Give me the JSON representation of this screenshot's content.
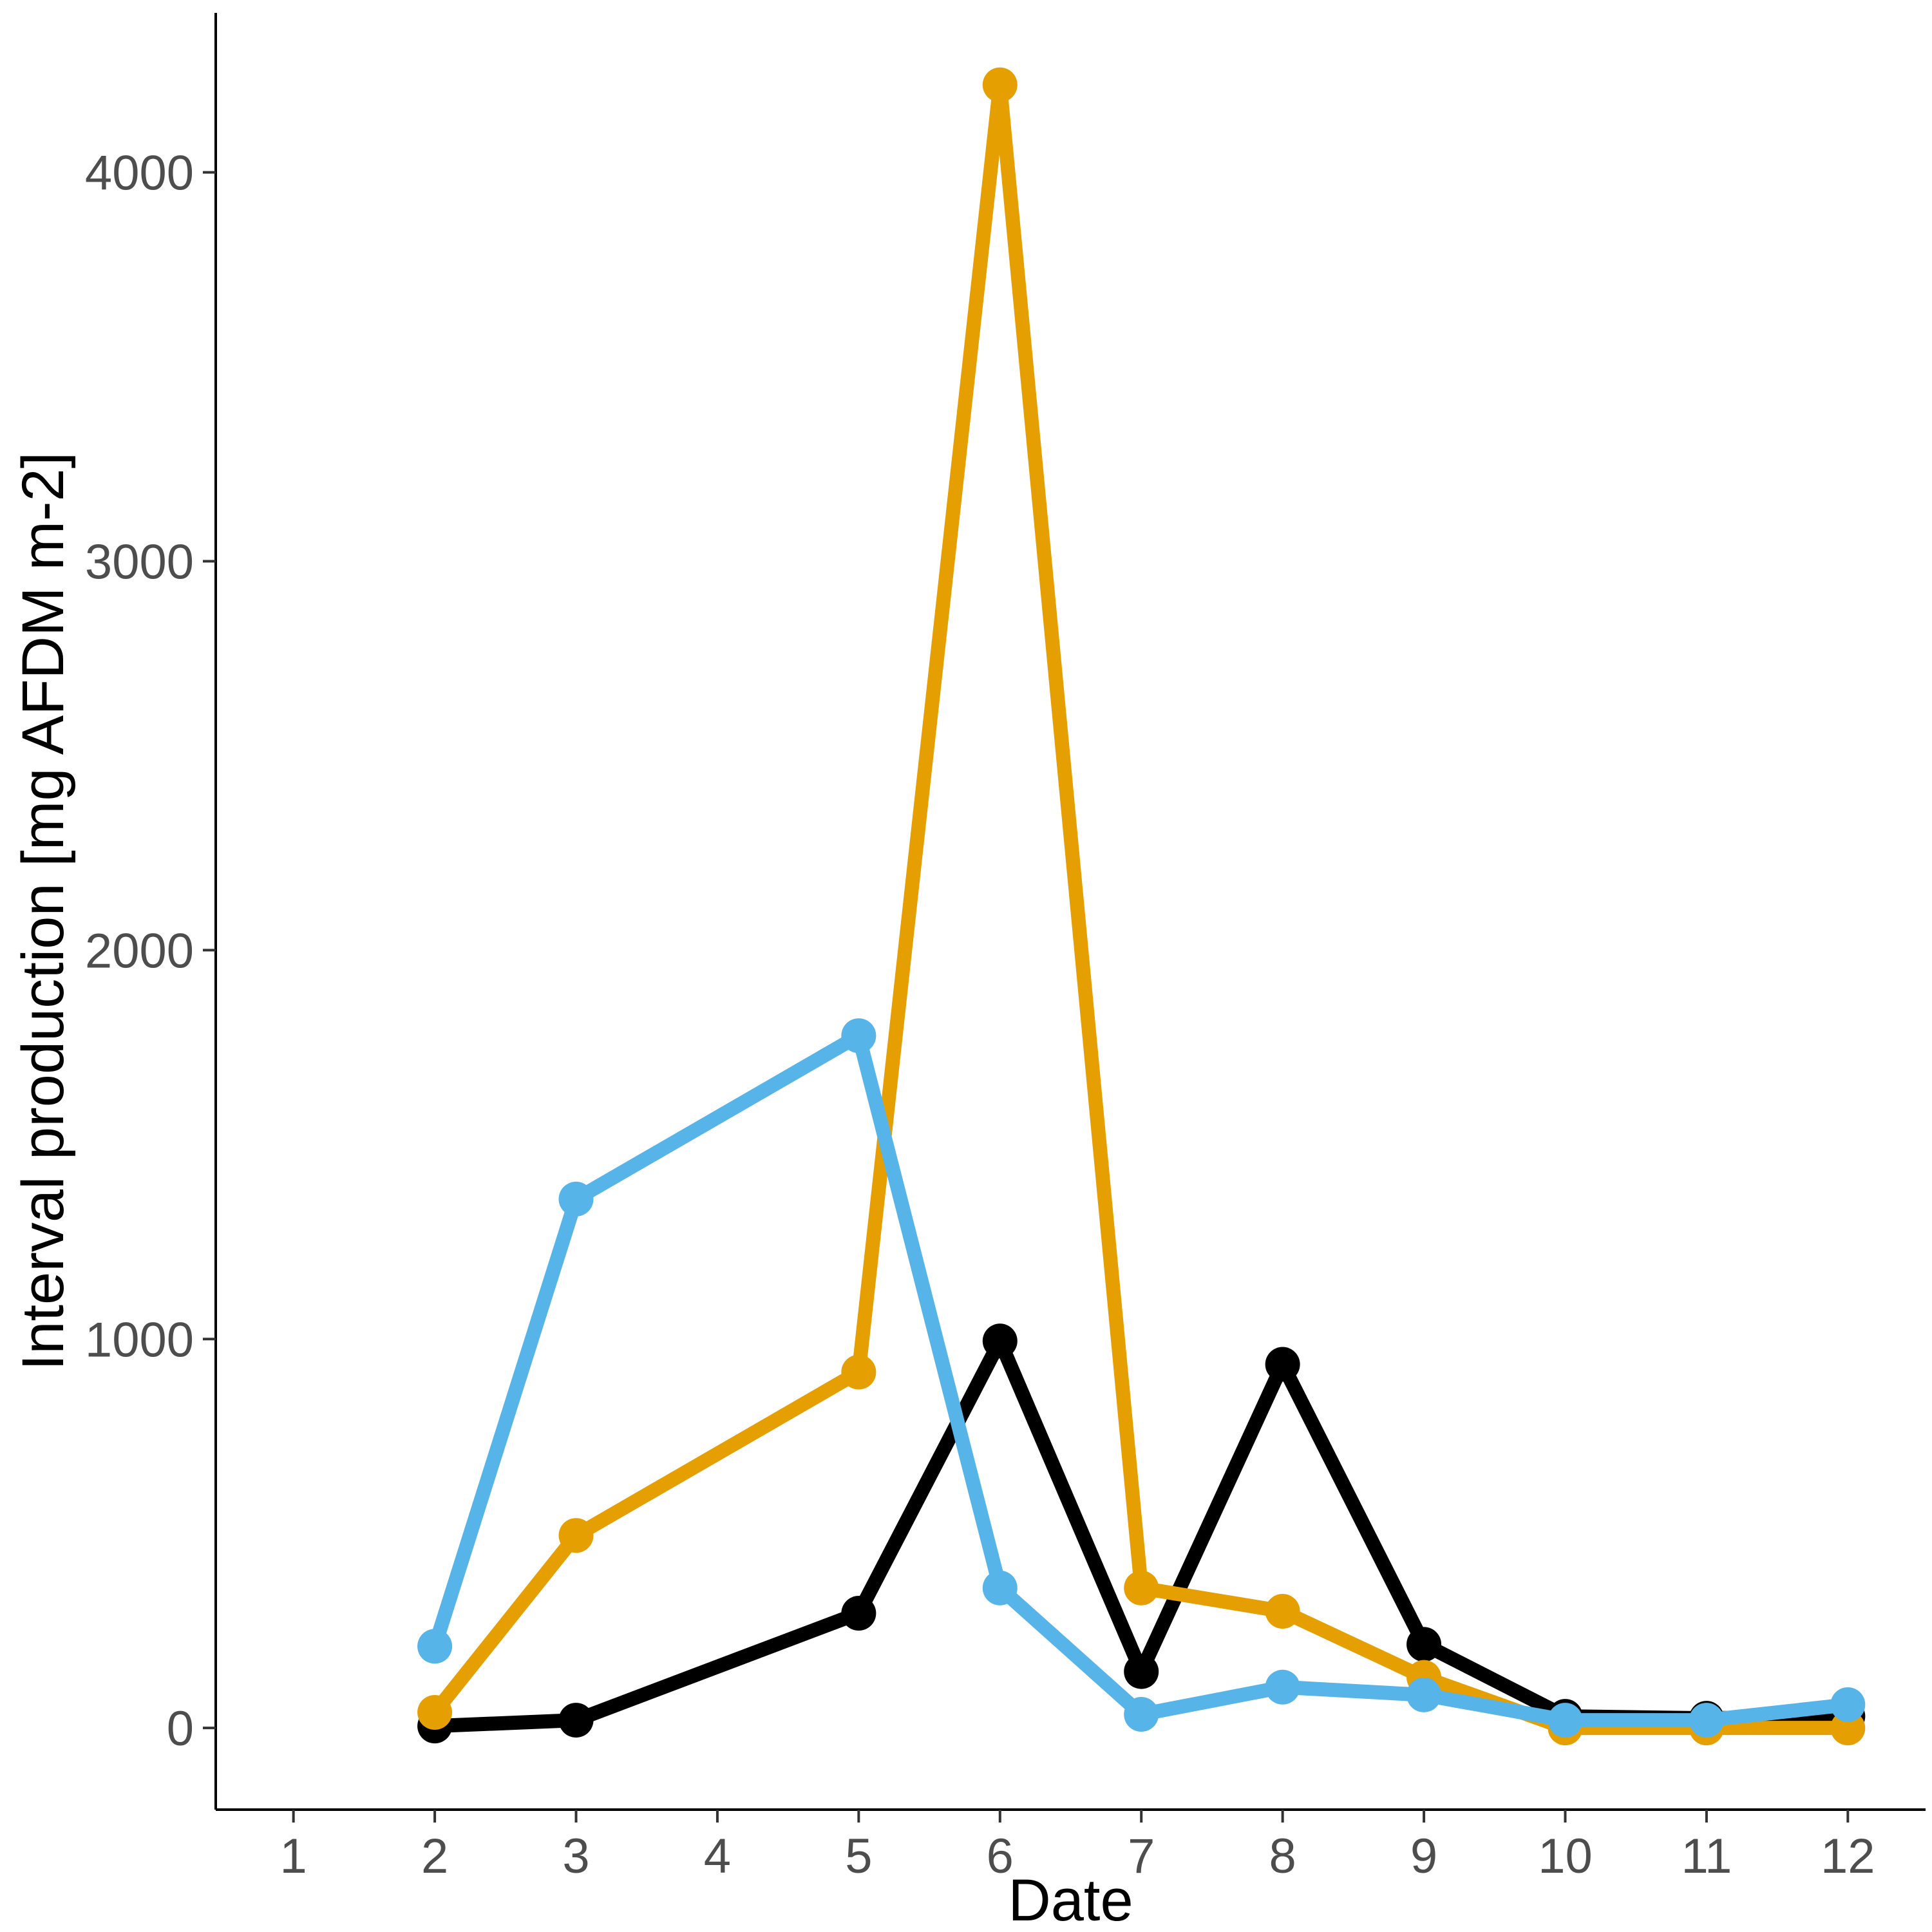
{
  "chart_data": {
    "type": "line",
    "xlabel": "Date",
    "ylabel": "Interval production [mg AFDM m-2]",
    "x_ticks": [
      1,
      2,
      3,
      4,
      5,
      6,
      7,
      8,
      9,
      10,
      11,
      12
    ],
    "y_ticks": [
      0,
      1000,
      2000,
      3000,
      4000
    ],
    "xlim": [
      0.45,
      12.55
    ],
    "ylim": [
      -210,
      4410
    ],
    "grid": false,
    "legend": "none",
    "series": [
      {
        "color": "#000000",
        "x": [
          2,
          3,
          5,
          6,
          7,
          8,
          9,
          10,
          11,
          12
        ],
        "y": [
          5,
          20,
          295,
          995,
          145,
          935,
          215,
          30,
          25,
          30
        ]
      },
      {
        "color": "#E69F00",
        "x": [
          2,
          3,
          5,
          6,
          7,
          8,
          9,
          10,
          11,
          12
        ],
        "y": [
          40,
          495,
          915,
          4225,
          360,
          300,
          130,
          0,
          0,
          0
        ]
      },
      {
        "color": "#56B4E9",
        "x": [
          2,
          3,
          5,
          6,
          7,
          8,
          9,
          10,
          11,
          12
        ],
        "y": [
          210,
          1360,
          1780,
          360,
          35,
          105,
          85,
          20,
          20,
          60
        ]
      }
    ]
  }
}
